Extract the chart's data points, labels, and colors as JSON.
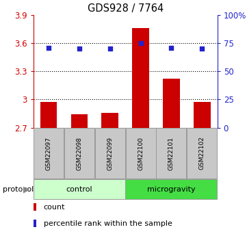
{
  "title": "GDS928 / 7764",
  "samples": [
    "GSM22097",
    "GSM22098",
    "GSM22099",
    "GSM22100",
    "GSM22101",
    "GSM22102"
  ],
  "bar_values": [
    2.97,
    2.845,
    2.855,
    3.755,
    3.22,
    2.97
  ],
  "bar_bottom": 2.7,
  "blue_values": [
    3.548,
    3.542,
    3.542,
    3.598,
    3.548,
    3.542
  ],
  "ylim_left": [
    2.7,
    3.9
  ],
  "ylim_right": [
    0,
    100
  ],
  "yticks_left": [
    2.7,
    3.0,
    3.3,
    3.6,
    3.9
  ],
  "yticks_right": [
    0,
    25,
    50,
    75,
    100
  ],
  "ytick_labels_left": [
    "2.7",
    "3",
    "3.3",
    "3.6",
    "3.9"
  ],
  "ytick_labels_right": [
    "0",
    "25",
    "50",
    "75",
    "100%"
  ],
  "hlines": [
    3.0,
    3.3,
    3.6
  ],
  "bar_color": "#cc0000",
  "blue_color": "#2222cc",
  "protocol_groups": [
    {
      "label": "control",
      "start": 0,
      "end": 3,
      "color": "#ccffcc"
    },
    {
      "label": "microgravity",
      "start": 3,
      "end": 6,
      "color": "#44dd44"
    }
  ],
  "legend": [
    {
      "color": "#cc0000",
      "label": "count"
    },
    {
      "color": "#2222cc",
      "label": "percentile rank within the sample"
    }
  ],
  "protocol_label": "protocol",
  "sample_box_color": "#c8c8c8",
  "bar_width": 0.55
}
